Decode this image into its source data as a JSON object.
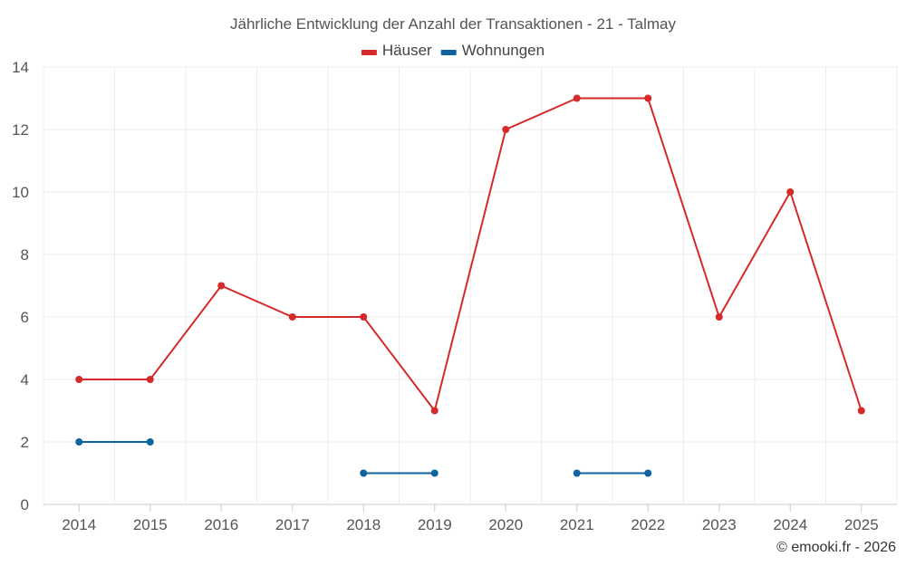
{
  "chart_data": {
    "type": "line",
    "title": "Jährliche Entwicklung der Anzahl der Transaktionen - 21 - Talmay",
    "categories": [
      "2014",
      "2015",
      "2016",
      "2017",
      "2018",
      "2019",
      "2020",
      "2021",
      "2022",
      "2023",
      "2024",
      "2025"
    ],
    "series": [
      {
        "name": "Häuser",
        "color": "#d42a2a",
        "values": [
          4,
          4,
          7,
          6,
          6,
          3,
          12,
          13,
          13,
          6,
          10,
          3
        ]
      },
      {
        "name": "Wohnungen",
        "color": "#0d64a0",
        "values": [
          2,
          2,
          null,
          null,
          1,
          1,
          null,
          1,
          1,
          null,
          null,
          null
        ]
      }
    ],
    "ylim": [
      0,
      14
    ],
    "yticks": [
      0,
      2,
      4,
      6,
      8,
      10,
      12,
      14
    ],
    "grid": true,
    "legend_position": "top-center"
  },
  "credit": "© emooki.fr - 2026"
}
